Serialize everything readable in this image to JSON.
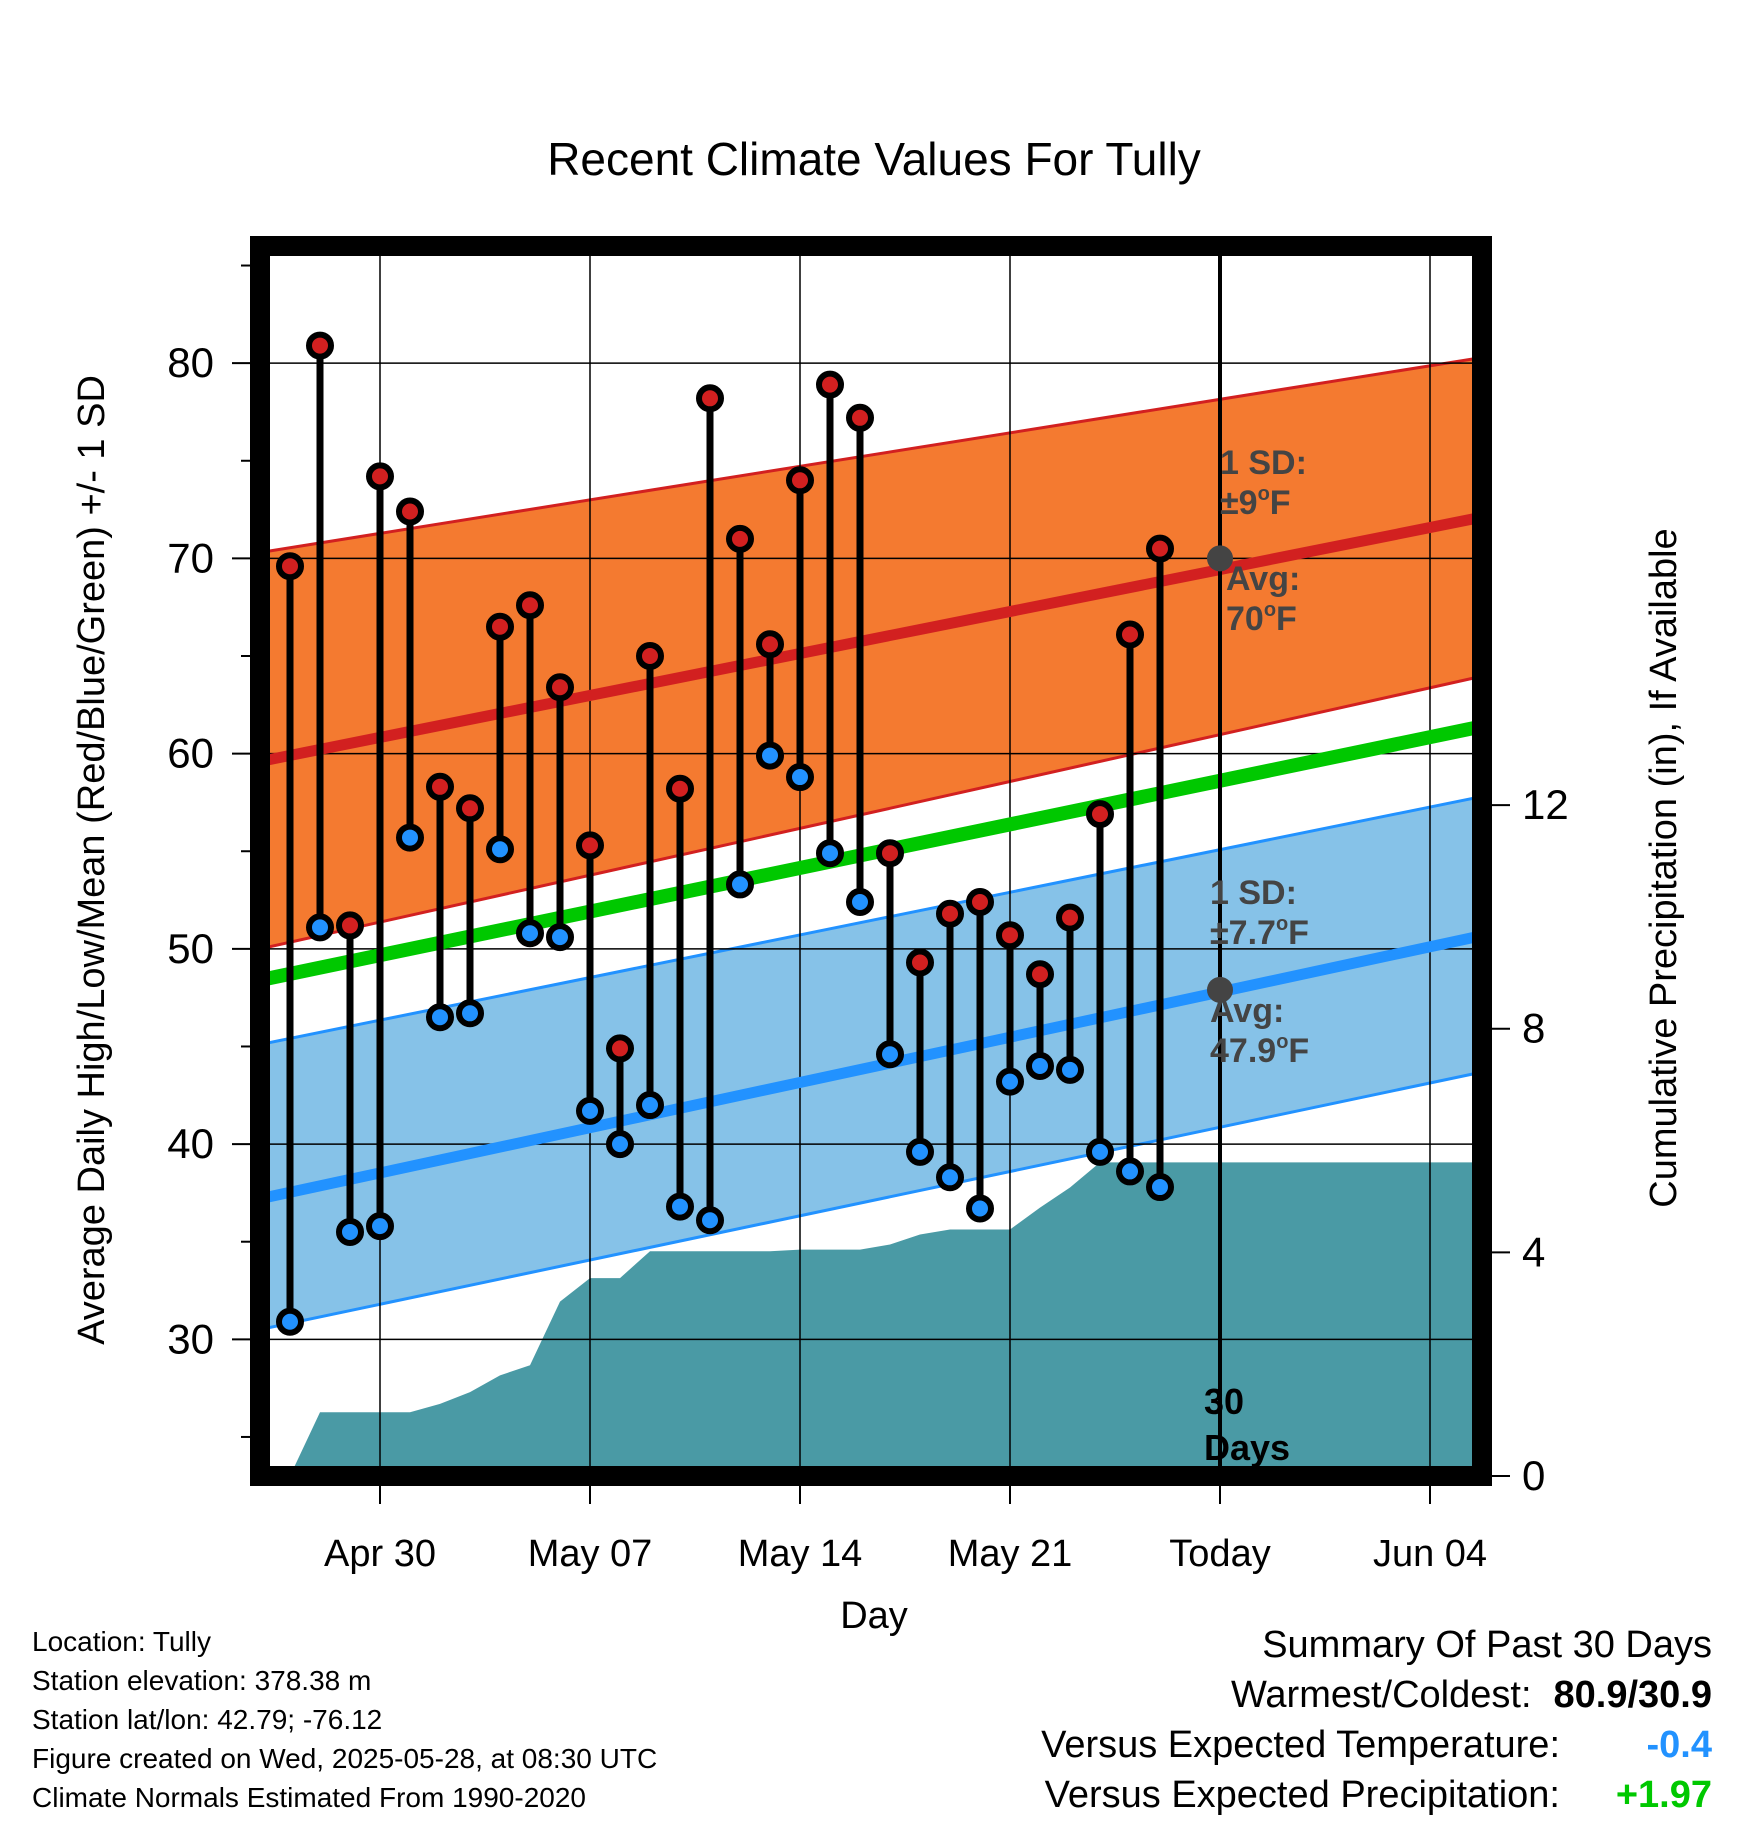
{
  "chart_data": {
    "type": "line",
    "title": "Recent Climate Values For Tully",
    "xlabel": "Day",
    "ylabel": "Average Daily High/Low/Mean (Red/Blue/Green) +/- 1 SD",
    "y2label": "Cumulative Precipitation (in), If Available",
    "ylim": [
      23,
      86
    ],
    "y2lim": [
      0,
      22
    ],
    "xlim": [
      "2025-04-26",
      "2025-06-07"
    ],
    "x_ticks": [
      {
        "date": "2025-04-30",
        "label": "Apr 30"
      },
      {
        "date": "2025-05-07",
        "label": "May 07"
      },
      {
        "date": "2025-05-14",
        "label": "May 14"
      },
      {
        "date": "2025-05-21",
        "label": "May 21"
      },
      {
        "date": "2025-05-28",
        "label": "Today"
      },
      {
        "date": "2025-06-04",
        "label": "Jun 04"
      }
    ],
    "y_ticks": [
      30,
      40,
      50,
      60,
      70,
      80
    ],
    "y2_ticks": [
      0,
      4,
      8,
      12
    ],
    "grid": true,
    "colors": {
      "high": "#d22020",
      "low": "#2292ff",
      "mean": "#00c800",
      "high_band": "#f47a30",
      "low_band": "#86c2e8",
      "precip": "#4a9aa5",
      "avg_marker": "#444444",
      "annotation": "#444444"
    },
    "daily": {
      "dates": [
        "2025-04-27",
        "2025-04-28",
        "2025-04-29",
        "2025-04-30",
        "2025-05-01",
        "2025-05-02",
        "2025-05-03",
        "2025-05-04",
        "2025-05-05",
        "2025-05-06",
        "2025-05-07",
        "2025-05-08",
        "2025-05-09",
        "2025-05-10",
        "2025-05-11",
        "2025-05-12",
        "2025-05-13",
        "2025-05-14",
        "2025-05-15",
        "2025-05-16",
        "2025-05-17",
        "2025-05-18",
        "2025-05-19",
        "2025-05-20",
        "2025-05-21",
        "2025-05-22",
        "2025-05-23",
        "2025-05-24",
        "2025-05-25",
        "2025-05-26",
        "2025-05-27"
      ],
      "highs": [
        69.6,
        80.9,
        51.2,
        74.2,
        72.4,
        58.3,
        57.2,
        66.5,
        67.6,
        63.4,
        55.3,
        44.9,
        65.0,
        58.2,
        78.2,
        71.0,
        65.6,
        74.0,
        78.9,
        77.2,
        54.9,
        49.3,
        51.8,
        52.4,
        50.7,
        48.7,
        51.6,
        56.9,
        66.1,
        70.5,
        null
      ],
      "lows": [
        30.9,
        51.1,
        35.5,
        35.8,
        55.7,
        46.5,
        46.7,
        55.1,
        50.8,
        50.6,
        41.7,
        40.0,
        42.0,
        36.8,
        36.1,
        53.3,
        59.9,
        58.8,
        54.9,
        52.4,
        44.6,
        39.6,
        38.3,
        36.7,
        43.2,
        44.0,
        43.8,
        39.6,
        38.6,
        37.8,
        null
      ]
    },
    "normals": {
      "dates": [
        "2025-04-26",
        "2025-06-07"
      ],
      "avg_high": [
        59.6,
        72.5
      ],
      "avg_high_upper": [
        70.3,
        80.6
      ],
      "avg_high_lower": [
        50.0,
        64.4
      ],
      "avg_low": [
        37.2,
        51.1
      ],
      "avg_low_upper": [
        45.1,
        58.2
      ],
      "avg_low_lower": [
        30.5,
        44.1
      ],
      "avg_mean": [
        48.4,
        61.8
      ]
    },
    "precip": {
      "dates": [
        "2025-04-26",
        "2025-04-27",
        "2025-04-28",
        "2025-04-29",
        "2025-04-30",
        "2025-05-01",
        "2025-05-02",
        "2025-05-03",
        "2025-05-04",
        "2025-05-05",
        "2025-05-06",
        "2025-05-07",
        "2025-05-08",
        "2025-05-09",
        "2025-05-10",
        "2025-05-11",
        "2025-05-12",
        "2025-05-13",
        "2025-05-14",
        "2025-05-15",
        "2025-05-16",
        "2025-05-17",
        "2025-05-18",
        "2025-05-19",
        "2025-05-20",
        "2025-05-21",
        "2025-05-22",
        "2025-05-23",
        "2025-05-24",
        "2025-05-25",
        "2025-05-26",
        "2025-05-27",
        "2025-06-07"
      ],
      "values": [
        0,
        0,
        1.14,
        1.14,
        1.14,
        1.14,
        1.29,
        1.5,
        1.8,
        1.98,
        3.12,
        3.54,
        3.54,
        4.02,
        4.02,
        4.02,
        4.02,
        4.02,
        4.05,
        4.05,
        4.05,
        4.14,
        4.32,
        4.41,
        4.41,
        4.41,
        4.8,
        5.16,
        5.61,
        5.61,
        5.61,
        5.61,
        5.61
      ]
    },
    "annotations": {
      "high_sd_line1": "1 SD:",
      "high_sd_value": "±9",
      "high_avg_line1": "Avg:",
      "high_avg_value": "70",
      "low_sd_line1": "1 SD:",
      "low_sd_value": "±7.7",
      "low_avg_line1": "Avg:",
      "low_avg_value": "47.9",
      "degree_unit": "F",
      "degree_sign": "o",
      "days_line1": "30",
      "days_line2": "Days",
      "today_high_avg": 70,
      "today_low_avg": 47.9,
      "today_date": "2025-05-28"
    }
  },
  "station": {
    "location": "Location: Tully",
    "elevation": "Station elevation: 378.38 m",
    "latlon": "Station lat/lon: 42.79; -76.12",
    "created": "Figure created on Wed, 2025-05-28, at 08:30 UTC",
    "normals": "Climate Normals Estimated From 1990-2020"
  },
  "summary": {
    "title": "Summary Of Past 30 Days",
    "warmest_label": "Warmest/Coldest:",
    "warmest_value": "80.9/30.9",
    "temp_label": "Versus Expected Temperature:",
    "temp_value": "-0.4",
    "temp_color": "#2292ff",
    "precip_label": "Versus Expected Precipitation:",
    "precip_value": "+1.97",
    "precip_color": "#00c800"
  }
}
